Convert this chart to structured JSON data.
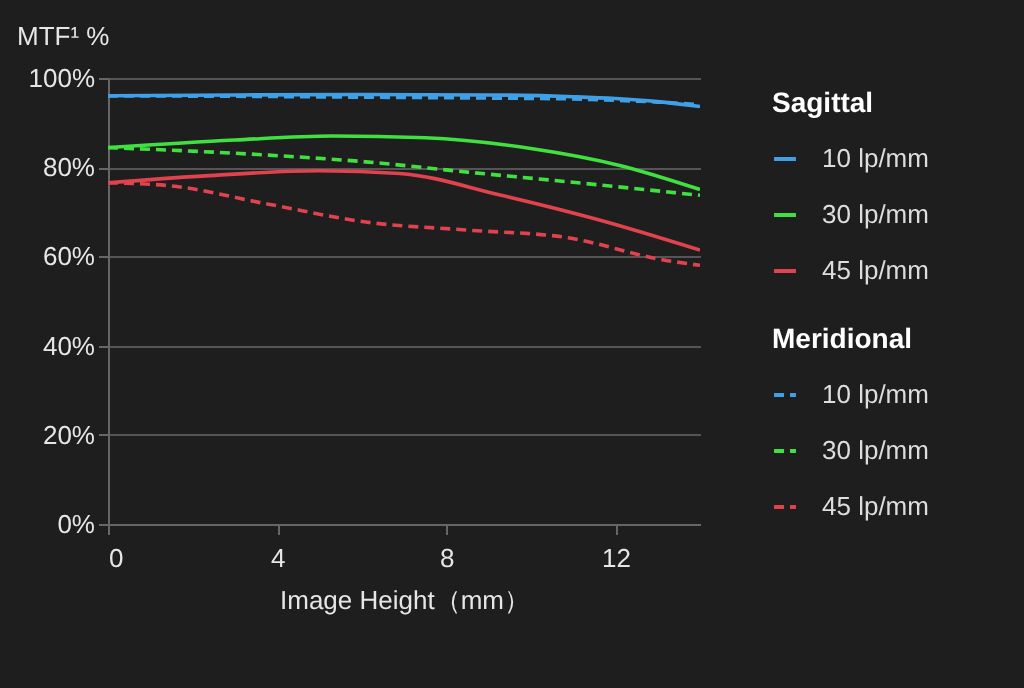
{
  "chart_data": {
    "type": "line",
    "ylabel": "MTF¹ %",
    "xlabel": "Image Height（mm）",
    "xlim": [
      0,
      14
    ],
    "xticks": [
      0,
      4,
      8,
      12
    ],
    "ylim": [
      0,
      100
    ],
    "yticks": [
      {
        "value": 0,
        "label": "0%"
      },
      {
        "value": 20,
        "label": "20%"
      },
      {
        "value": 40,
        "label": "40%"
      },
      {
        "value": 60,
        "label": "60%"
      },
      {
        "value": 80,
        "label": "80%"
      },
      {
        "value": 100,
        "label": "100%"
      }
    ],
    "grid": "y",
    "legend": "right",
    "marker": "none",
    "annotations": [
      "Sagittal",
      "Meridional"
    ],
    "series": [
      {
        "name": "10 lp/mm",
        "color": "#3fa0e8",
        "line_style": "solid",
        "x": [
          0,
          3,
          6,
          9,
          11,
          12,
          13,
          14
        ],
        "values": [
          96,
          96.2,
          96.3,
          96.2,
          95.8,
          95.4,
          94.7,
          93.6
        ]
      },
      {
        "name": "30 lp/mm",
        "color": "#3fe03f",
        "line_style": "solid",
        "x": [
          0,
          3,
          5.3,
          7.5,
          10,
          12.1,
          14
        ],
        "values": [
          84.4,
          86.1,
          87,
          86.6,
          84.2,
          80.4,
          75
        ]
      },
      {
        "name": "45 lp/mm",
        "color": "#e0434e",
        "line_style": "solid",
        "x": [
          0,
          2.2,
          5,
          6.9,
          9.3,
          11.6,
          14
        ],
        "values": [
          76.5,
          78,
          79.2,
          78.6,
          73.7,
          68.2,
          61.4
        ]
      },
      {
        "name": "10 lp/mm",
        "color": "#3fa0e8",
        "line_style": "dashed",
        "x": [
          0,
          3,
          6,
          9,
          11,
          12,
          13,
          14
        ],
        "values": [
          96,
          95.9,
          95.7,
          95.5,
          95.3,
          95,
          94.6,
          94
        ]
      },
      {
        "name": "30 lp/mm",
        "color": "#3fe03f",
        "line_style": "dashed",
        "x": [
          0,
          3.8,
          6.1,
          8.5,
          10.8,
          14
        ],
        "values": [
          84.4,
          82.7,
          81.2,
          78.9,
          76.8,
          73.7
        ]
      },
      {
        "name": "45 lp/mm",
        "color": "#e0434e",
        "line_style": "dashed",
        "x": [
          0,
          1.4,
          3.8,
          6.1,
          8.5,
          10.8,
          13.2,
          14
        ],
        "values": [
          76.5,
          75.9,
          71.7,
          67.7,
          65.9,
          64.3,
          59.1,
          58
        ]
      }
    ]
  }
}
